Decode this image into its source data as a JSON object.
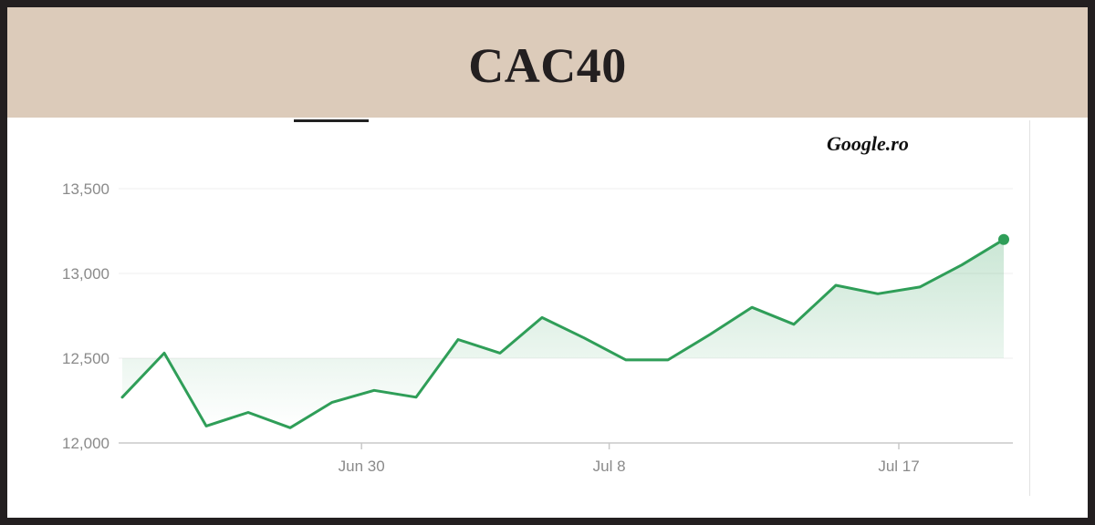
{
  "header": {
    "title": "CAC40"
  },
  "source": {
    "label": "Google.ro"
  },
  "colors": {
    "header_bg": "#dccbba",
    "line": "#2f9e58",
    "grid": "#efefef",
    "axis": "#c8c8c8",
    "tick_text": "#8a8a8a"
  },
  "chart_data": {
    "type": "area",
    "title": "CAC40",
    "xlabel": "",
    "ylabel": "",
    "ylim": [
      12000,
      13700
    ],
    "y_ticks": [
      {
        "value": 12000,
        "label": "12,000"
      },
      {
        "value": 12500,
        "label": "12,500"
      },
      {
        "value": 13000,
        "label": "13,000"
      },
      {
        "value": 13500,
        "label": "13,500"
      }
    ],
    "x_ticks": [
      {
        "index": 5.7,
        "label": "Jun 30"
      },
      {
        "index": 11.6,
        "label": "Jul 8"
      },
      {
        "index": 18.5,
        "label": "Jul 17"
      }
    ],
    "grid": true,
    "series": [
      {
        "values": [
          12270,
          12530,
          12100,
          12180,
          12090,
          12240,
          12310,
          12270,
          12610,
          12530,
          12740,
          12620,
          12490,
          12490,
          12640,
          12800,
          12700,
          12930,
          12880,
          12920,
          13050,
          13200
        ]
      }
    ]
  }
}
